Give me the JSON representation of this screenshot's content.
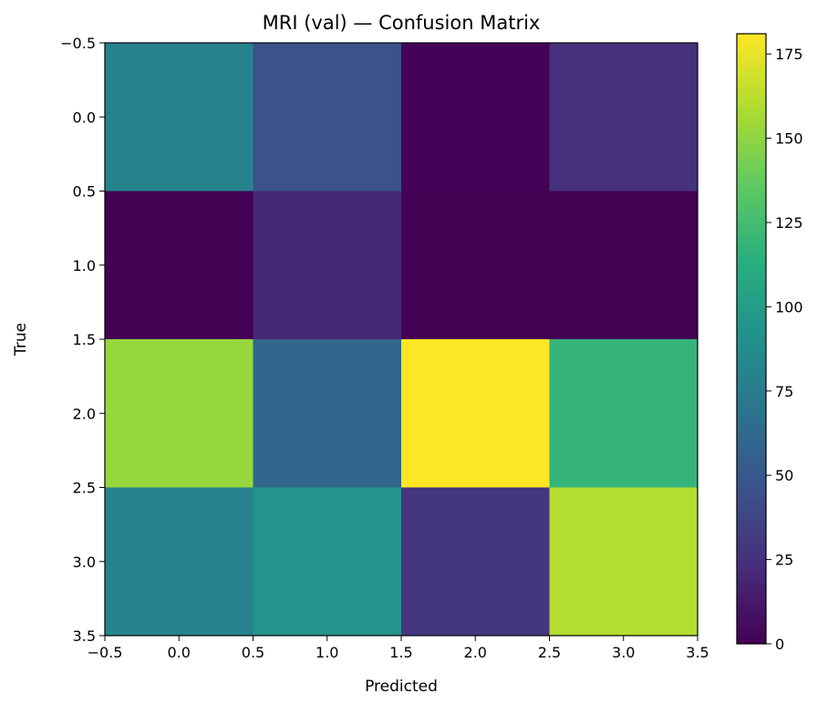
{
  "chart_data": {
    "type": "heatmap",
    "title": "MRI (val) — Confusion Matrix",
    "xlabel": "Predicted",
    "ylabel": "True",
    "xlim": [
      -0.5,
      3.5
    ],
    "ylim": [
      3.5,
      -0.5
    ],
    "x_ticks": [
      "−0.5",
      "0.0",
      "0.5",
      "1.0",
      "1.5",
      "2.0",
      "2.5",
      "3.0",
      "3.5"
    ],
    "y_ticks": [
      "−0.5",
      "0.0",
      "0.5",
      "1.0",
      "1.5",
      "2.0",
      "2.5",
      "3.0",
      "3.5"
    ],
    "matrix": [
      [
        80,
        45,
        1,
        25
      ],
      [
        0,
        20,
        0,
        0
      ],
      [
        152,
        60,
        181,
        118
      ],
      [
        80,
        93,
        28,
        160
      ]
    ],
    "colormap": "viridis",
    "colorbar": {
      "min": 0,
      "max": 181,
      "ticks": [
        0,
        25,
        50,
        75,
        100,
        125,
        150,
        175
      ]
    },
    "grid": false,
    "legend": "none"
  }
}
